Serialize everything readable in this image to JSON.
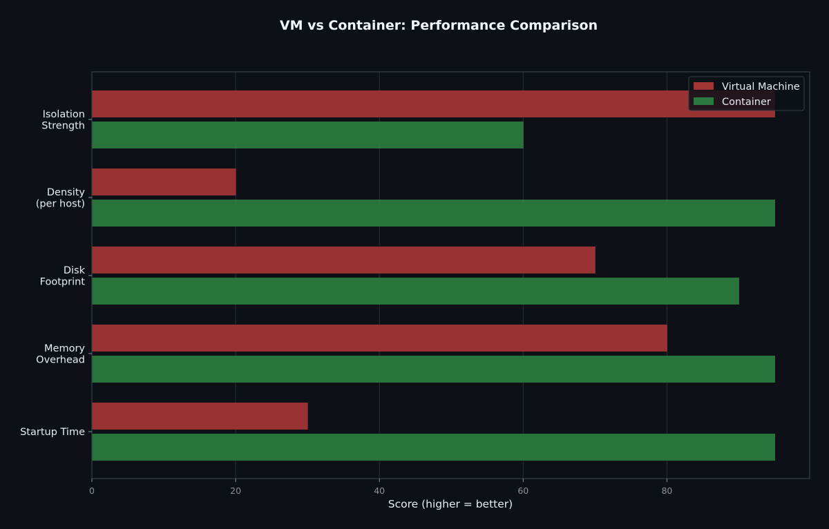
{
  "chart_data": {
    "type": "bar",
    "orientation": "horizontal",
    "title": "VM vs Container: Performance Comparison",
    "xlabel": "Score (higher = better)",
    "ylabel": "",
    "xlim": [
      0,
      100
    ],
    "xticks": [
      0,
      20,
      40,
      60,
      80
    ],
    "categories": [
      "Isolation\nStrength",
      "Density\n(per host)",
      "Disk\nFootprint",
      "Memory\nOverhead",
      "Startup Time"
    ],
    "series": [
      {
        "name": "Virtual Machine",
        "color": "#a03535",
        "values": [
          95,
          20,
          70,
          80,
          30
        ]
      },
      {
        "name": "Container",
        "color": "#2b7a3d",
        "values": [
          60,
          95,
          90,
          95,
          95
        ]
      }
    ],
    "grid": "x",
    "legend_position": "top-right"
  },
  "colors": {
    "background": "#0d1117",
    "axes_border": "#3a3f47",
    "grid": "#2a2f36",
    "tick_label": "#8b949e",
    "category_label": "#e6edf3",
    "title": "#f0f6fc"
  }
}
